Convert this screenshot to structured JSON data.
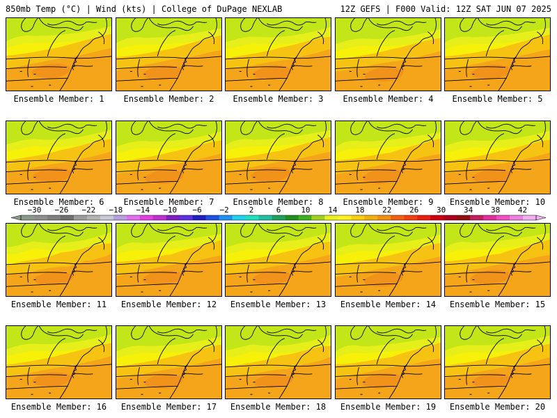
{
  "header": {
    "left": "850mb Temp (°C) | Wind (kts) | College of DuPage NEXLAB",
    "right": "12Z GEFS | F000 Valid: 12Z SAT JUN 07 2025"
  },
  "panels": [
    {
      "caption": "Ensemble Member: 1"
    },
    {
      "caption": "Ensemble Member: 2"
    },
    {
      "caption": "Ensemble Member: 3"
    },
    {
      "caption": "Ensemble Member: 4"
    },
    {
      "caption": "Ensemble Member: 5"
    },
    {
      "caption": "Ensemble Member: 6"
    },
    {
      "caption": "Ensemble Member: 7"
    },
    {
      "caption": "Ensemble Member: 8"
    },
    {
      "caption": "Ensemble Member: 9"
    },
    {
      "caption": "Ensemble Member: 10"
    },
    {
      "caption": "Ensemble Member: 11"
    },
    {
      "caption": "Ensemble Member: 12"
    },
    {
      "caption": "Ensemble Member: 13"
    },
    {
      "caption": "Ensemble Member: 14"
    },
    {
      "caption": "Ensemble Member: 15"
    },
    {
      "caption": "Ensemble Member: 16"
    },
    {
      "caption": "Ensemble Member: 17"
    },
    {
      "caption": "Ensemble Member: 18"
    },
    {
      "caption": "Ensemble Member: 19"
    },
    {
      "caption": "Ensemble Member: 20"
    }
  ],
  "colorbar": {
    "min": -32,
    "max": 44,
    "step": 2,
    "labels": [
      "−30",
      "−26",
      "−22",
      "−18",
      "−14",
      "−10",
      "−6",
      "−2",
      "2",
      "6",
      "10",
      "14",
      "18",
      "22",
      "26",
      "30",
      "34",
      "38",
      "42"
    ],
    "label_values": [
      -30,
      -26,
      -22,
      -18,
      -14,
      -10,
      -6,
      -2,
      2,
      6,
      10,
      14,
      18,
      22,
      26,
      30,
      34,
      38,
      42
    ],
    "colors": [
      "#8a9a8a",
      "#8f8f8f",
      "#7f7f7f",
      "#6f6f6f",
      "#9d9d9d",
      "#b3b3b3",
      "#c8c8d8",
      "#b8a0e0",
      "#e070f0",
      "#e040e0",
      "#c030d0",
      "#8020c0",
      "#6030e0",
      "#2020c0",
      "#2050e0",
      "#2090f0",
      "#20d0f0",
      "#20e0c0",
      "#20c0a0",
      "#20a060",
      "#209020",
      "#40b020",
      "#a0d020",
      "#e8f020",
      "#fff020",
      "#f8d010",
      "#f0b010",
      "#f09010",
      "#f06010",
      "#f04010",
      "#e82010",
      "#d00010",
      "#b00020",
      "#901010",
      "#c02060",
      "#e030a0",
      "#f050c0",
      "#f080e0",
      "#f0b0f0"
    ]
  },
  "palette": {
    "green": "#c2e617",
    "yellow_green": "#e4ee1e",
    "yellow": "#f7f008",
    "light_orange": "#f6c312",
    "orange": "#f4a519",
    "deep_orange": "#ef8a1d"
  }
}
